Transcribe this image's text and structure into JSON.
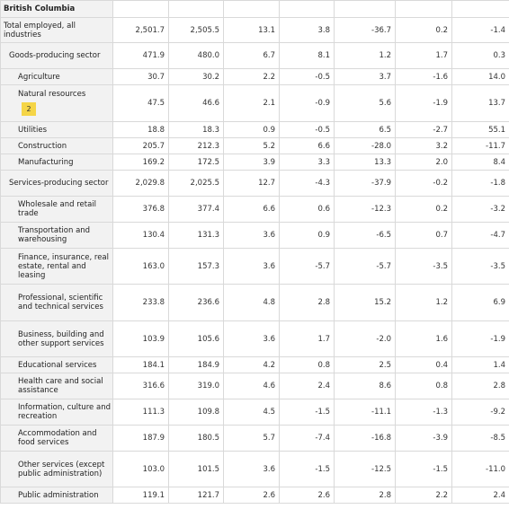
{
  "region": "British Columbia",
  "footnote_badge": "2",
  "rows": [
    {
      "label": "Total employed, all industries",
      "v": [
        "2,501.7",
        "2,505.5",
        "13.1",
        "3.8",
        "-36.7",
        "0.2",
        "-1.4"
      ]
    },
    {
      "label": "Goods-producing sector",
      "v": [
        "471.9",
        "480.0",
        "6.7",
        "8.1",
        "1.2",
        "1.7",
        "0.3"
      ]
    },
    {
      "label": "Agriculture",
      "v": [
        "30.7",
        "30.2",
        "2.2",
        "-0.5",
        "3.7",
        "-1.6",
        "14.0"
      ]
    },
    {
      "label": "Natural resources",
      "v": [
        "47.5",
        "46.6",
        "2.1",
        "-0.9",
        "5.6",
        "-1.9",
        "13.7"
      ]
    },
    {
      "label": "Utilities",
      "v": [
        "18.8",
        "18.3",
        "0.9",
        "-0.5",
        "6.5",
        "-2.7",
        "55.1"
      ]
    },
    {
      "label": "Construction",
      "v": [
        "205.7",
        "212.3",
        "5.2",
        "6.6",
        "-28.0",
        "3.2",
        "-11.7"
      ]
    },
    {
      "label": "Manufacturing",
      "v": [
        "169.2",
        "172.5",
        "3.9",
        "3.3",
        "13.3",
        "2.0",
        "8.4"
      ]
    },
    {
      "label": "Services-producing sector",
      "v": [
        "2,029.8",
        "2,025.5",
        "12.7",
        "-4.3",
        "-37.9",
        "-0.2",
        "-1.8"
      ]
    },
    {
      "label": "Wholesale and retail trade",
      "v": [
        "376.8",
        "377.4",
        "6.6",
        "0.6",
        "-12.3",
        "0.2",
        "-3.2"
      ]
    },
    {
      "label": "Transportation and warehousing",
      "v": [
        "130.4",
        "131.3",
        "3.6",
        "0.9",
        "-6.5",
        "0.7",
        "-4.7"
      ]
    },
    {
      "label": "Finance, insurance, real estate, rental and leasing",
      "v": [
        "163.0",
        "157.3",
        "3.6",
        "-5.7",
        "-5.7",
        "-3.5",
        "-3.5"
      ]
    },
    {
      "label": "Professional, scientific and technical services",
      "v": [
        "233.8",
        "236.6",
        "4.8",
        "2.8",
        "15.2",
        "1.2",
        "6.9"
      ]
    },
    {
      "label": "Business, building and other support services",
      "v": [
        "103.9",
        "105.6",
        "3.6",
        "1.7",
        "-2.0",
        "1.6",
        "-1.9"
      ]
    },
    {
      "label": "Educational services",
      "v": [
        "184.1",
        "184.9",
        "4.2",
        "0.8",
        "2.5",
        "0.4",
        "1.4"
      ]
    },
    {
      "label": "Health care and social assistance",
      "v": [
        "316.6",
        "319.0",
        "4.6",
        "2.4",
        "8.6",
        "0.8",
        "2.8"
      ]
    },
    {
      "label": "Information, culture and recreation",
      "v": [
        "111.3",
        "109.8",
        "4.5",
        "-1.5",
        "-11.1",
        "-1.3",
        "-9.2"
      ]
    },
    {
      "label": "Accommodation and food services",
      "v": [
        "187.9",
        "180.5",
        "5.7",
        "-7.4",
        "-16.8",
        "-3.9",
        "-8.5"
      ]
    },
    {
      "label": "Other services (except public administration)",
      "v": [
        "103.0",
        "101.5",
        "3.6",
        "-1.5",
        "-12.5",
        "-1.5",
        "-11.0"
      ]
    },
    {
      "label": "Public administration",
      "v": [
        "119.1",
        "121.7",
        "2.6",
        "2.6",
        "2.8",
        "2.2",
        "2.4"
      ]
    }
  ]
}
